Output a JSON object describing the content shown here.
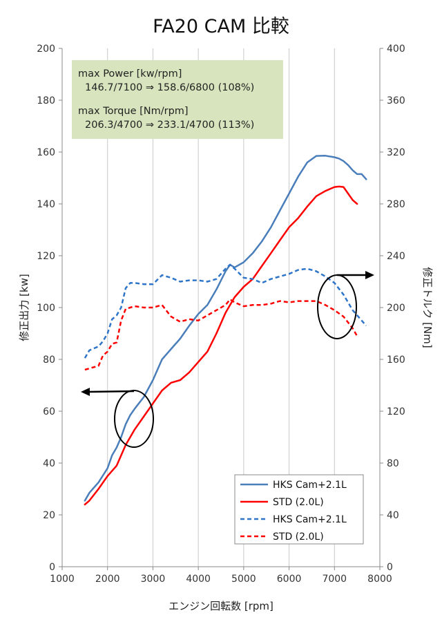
{
  "chart_data": {
    "type": "line",
    "title": "FA20 CAM 比較",
    "xlabel": "エンジン回転数 [rpm]",
    "ylabel_left": "修正出力 [kw]",
    "ylabel_right": "修正トルク [Nm]",
    "xlim": [
      1000,
      8000
    ],
    "ylim_left": [
      0,
      200
    ],
    "ylim_right": [
      0,
      400
    ],
    "x_ticks": [
      "1000",
      "2000",
      "3000",
      "4000",
      "5000",
      "6000",
      "7000",
      "8000"
    ],
    "y_ticks_left": [
      "0",
      "20",
      "40",
      "60",
      "80",
      "100",
      "120",
      "140",
      "160",
      "180",
      "200"
    ],
    "y_ticks_right": [
      "0",
      "40",
      "80",
      "120",
      "160",
      "200",
      "240",
      "280",
      "320",
      "360",
      "400"
    ],
    "grid": "vertical",
    "annotation": {
      "line1": "max Power [kw/rpm]",
      "line2": "146.7/7100 ⇒ 158.6/6800 (108%)",
      "line3": "max Torque [Nm/rpm]",
      "line4": "206.3/4700 ⇒ 233.1/4700 (113%)"
    },
    "legend_position": "bottom-right",
    "series": [
      {
        "name": "HKS Cam+2.1L",
        "axis": "left",
        "style": "solid",
        "color": "#4a7ebb",
        "x": [
          1500,
          1600,
          1800,
          2000,
          2100,
          2200,
          2300,
          2400,
          2500,
          2600,
          2800,
          3000,
          3200,
          3400,
          3600,
          3800,
          4000,
          4200,
          4400,
          4600,
          4700,
          4800,
          5000,
          5200,
          5400,
          5600,
          5800,
          6000,
          6200,
          6400,
          6600,
          6800,
          7000,
          7100,
          7200,
          7300,
          7400,
          7500,
          7600,
          7700
        ],
        "values": [
          25.5,
          28.5,
          32.5,
          38,
          43,
          46,
          50,
          55,
          58.5,
          61,
          65.5,
          72,
          80,
          84,
          88,
          93,
          97.5,
          101,
          107,
          114,
          116.5,
          115.5,
          117.5,
          121,
          125.5,
          131,
          137.5,
          144,
          150.5,
          156,
          158.5,
          158.6,
          158,
          157.5,
          156.5,
          155,
          153,
          151.5,
          151.5,
          149.5
        ]
      },
      {
        "name": "STD (2.0L)",
        "axis": "left",
        "style": "solid",
        "color": "#ff0000",
        "x": [
          1500,
          1600,
          1800,
          2000,
          2200,
          2400,
          2600,
          2800,
          3000,
          3200,
          3400,
          3600,
          3800,
          4000,
          4200,
          4400,
          4600,
          4800,
          5000,
          5200,
          5400,
          5600,
          5800,
          6000,
          6200,
          6400,
          6600,
          6800,
          7000,
          7100,
          7200,
          7300,
          7400,
          7500
        ],
        "values": [
          24,
          25.5,
          30,
          35,
          39,
          47,
          53,
          58,
          63,
          68,
          71,
          72,
          75,
          79,
          83,
          90,
          98,
          104,
          108,
          111,
          116,
          121,
          126,
          131,
          134.5,
          139,
          143,
          145,
          146.5,
          146.7,
          146.5,
          144,
          141.5,
          140
        ]
      },
      {
        "name": "HKS Cam+2.1L",
        "axis": "right",
        "style": "dashed",
        "color": "#2e75c9",
        "x": [
          1500,
          1600,
          1800,
          1900,
          2000,
          2100,
          2200,
          2300,
          2400,
          2500,
          2600,
          2800,
          3000,
          3200,
          3400,
          3600,
          3800,
          4000,
          4200,
          4400,
          4600,
          4700,
          4800,
          5000,
          5200,
          5400,
          5600,
          5800,
          6000,
          6200,
          6400,
          6600,
          6800,
          7000,
          7200,
          7400,
          7600,
          7700
        ],
        "values": [
          161,
          167,
          170,
          174,
          180,
          191,
          194,
          200,
          215,
          219,
          219,
          218,
          218,
          225,
          223,
          220,
          221,
          221,
          220,
          222,
          230,
          233.1,
          230,
          223,
          222,
          219,
          222,
          224,
          226,
          229,
          230,
          228,
          224,
          219,
          210,
          198,
          190,
          186
        ]
      },
      {
        "name": "STD (2.0L)",
        "axis": "right",
        "style": "dashed",
        "color": "#ff0000",
        "x": [
          1500,
          1600,
          1800,
          1900,
          2000,
          2100,
          2200,
          2300,
          2400,
          2500,
          2600,
          2800,
          3000,
          3200,
          3400,
          3600,
          3800,
          4000,
          4200,
          4400,
          4600,
          4700,
          4800,
          5000,
          5200,
          5400,
          5600,
          5800,
          6000,
          6200,
          6400,
          6600,
          6800,
          7000,
          7200,
          7400,
          7500
        ],
        "values": [
          152,
          153,
          155,
          163,
          166,
          172,
          173,
          190,
          199,
          200,
          201,
          200,
          200,
          202,
          193,
          189,
          191,
          190,
          194,
          198,
          202,
          206.3,
          204,
          201,
          202,
          202,
          203,
          205,
          204,
          205,
          205,
          205,
          202,
          198,
          193,
          184,
          178
        ]
      }
    ]
  }
}
